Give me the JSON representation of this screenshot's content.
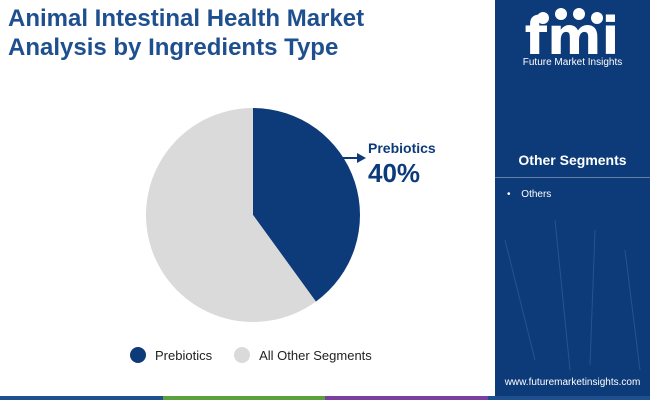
{
  "title_line1": "Animal Intestinal Health Market",
  "title_line2": "Analysis by Ingredients Type",
  "chart_data": {
    "type": "pie",
    "title": "Animal Intestinal Health Market Analysis by Ingredients Type",
    "labels": [
      "Prebiotics",
      "All Other Segments"
    ],
    "values": [
      40,
      60
    ],
    "colors": [
      "#0d3b7a",
      "#dadada"
    ],
    "annotation": {
      "label": "Prebiotics",
      "value": "40%"
    },
    "legend_position": "bottom"
  },
  "brand": {
    "logo_text": "fmi",
    "name": "Future Market Insights",
    "website": "www.futuremarketinsights.com"
  },
  "sidebar": {
    "heading": "Other Segments",
    "items": [
      "Others"
    ]
  },
  "colors": {
    "accent": "#0d3b7a",
    "title": "#1e4f8f",
    "bottom_bar": [
      "#1e4f8f",
      "#5aa03c",
      "#7b3fa0",
      "#1e4f8f"
    ]
  }
}
